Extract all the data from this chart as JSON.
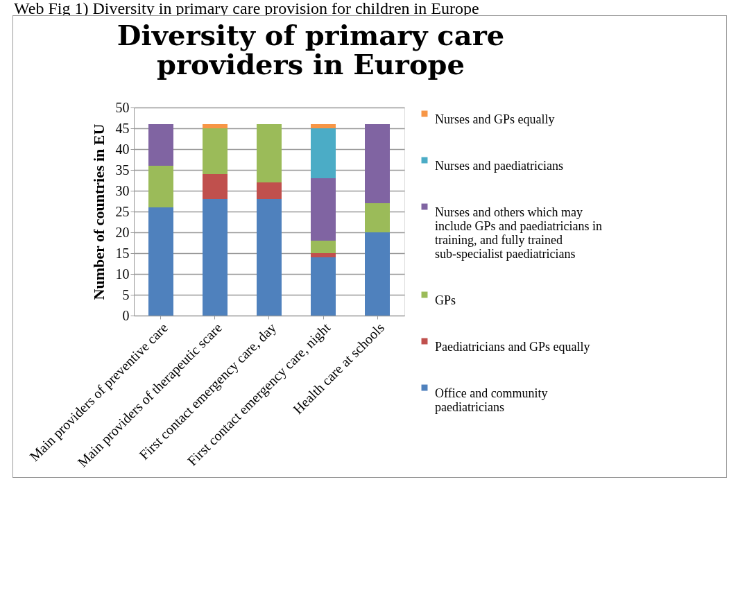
{
  "chart_data": {
    "type": "bar",
    "title": "Diversity of primary care providers in Europe",
    "ylabel": "Number of countries in EU",
    "annotations": [
      "Web Fig 1) Diversity in primary care provision for children in Europe"
    ],
    "categories": [
      "Main providers of preventive care",
      "Main providers of therapeutic scare",
      "First contact emergency care, day",
      "First contact emergency care, night",
      "Health care at schools"
    ],
    "stacked": true,
    "series": [
      {
        "name": "Office and community paediatricians",
        "color": "#4f81bd",
        "values": [
          26,
          28,
          28,
          14,
          20
        ]
      },
      {
        "name": "Paediatricians and GPs equally",
        "color": "#c0504d",
        "values": [
          0,
          6,
          4,
          1,
          0
        ]
      },
      {
        "name": "GPs",
        "color": "#9bbb59",
        "values": [
          10,
          11,
          14,
          3,
          7
        ]
      },
      {
        "name": "Nurses and others which may include GPs and paediatricians in training, and fully trained sub-specialist paediatricians",
        "color": "#8064a2",
        "values": [
          10,
          0,
          0,
          15,
          19
        ]
      },
      {
        "name": "Nurses and paediatricians",
        "color": "#4bacc6",
        "values": [
          0,
          0,
          0,
          12,
          0
        ]
      },
      {
        "name": "Nurses and GPs equally",
        "color": "#f79646",
        "values": [
          0,
          1,
          0,
          1,
          0
        ]
      }
    ],
    "ylim": [
      0,
      50
    ],
    "yticks": [
      0,
      5,
      10,
      15,
      20,
      25,
      30,
      35,
      40,
      45,
      50
    ],
    "grid": "y",
    "legend": "right"
  }
}
